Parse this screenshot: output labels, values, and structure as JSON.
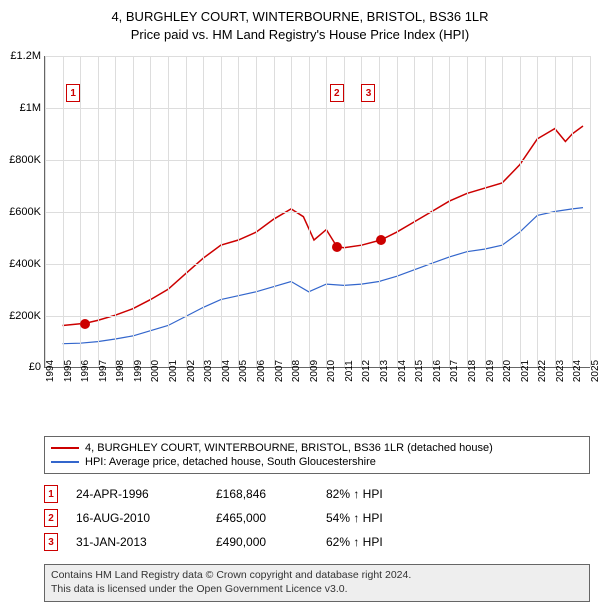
{
  "title": {
    "line1": "4, BURGHLEY COURT, WINTERBOURNE, BRISTOL, BS36 1LR",
    "line2": "Price paid vs. HM Land Registry's House Price Index (HPI)"
  },
  "chart": {
    "type": "line",
    "ylim": [
      0,
      1200000
    ],
    "ytick_step": 200000,
    "ytick_labels": [
      "£0",
      "£200K",
      "£400K",
      "£600K",
      "£800K",
      "£1M",
      "£1.2M"
    ],
    "xlim": [
      1994,
      2025
    ],
    "xticks": [
      1994,
      1995,
      1996,
      1997,
      1998,
      1999,
      2000,
      2001,
      2002,
      2003,
      2004,
      2005,
      2006,
      2007,
      2008,
      2009,
      2010,
      2011,
      2012,
      2013,
      2014,
      2015,
      2016,
      2017,
      2018,
      2019,
      2020,
      2021,
      2022,
      2023,
      2024,
      2025
    ],
    "background_color": "#ffffff",
    "grid_color": "#dddddd",
    "series": [
      {
        "name": "property",
        "label": "4, BURGHLEY COURT, WINTERBOURNE, BRISTOL, BS36 1LR (detached house)",
        "color": "#cc0000",
        "line_width": 1.5,
        "points": [
          [
            1995.0,
            160000
          ],
          [
            1996.3,
            168846
          ],
          [
            1997.0,
            180000
          ],
          [
            1998.0,
            200000
          ],
          [
            1999.0,
            225000
          ],
          [
            2000.0,
            260000
          ],
          [
            2001.0,
            300000
          ],
          [
            2002.0,
            360000
          ],
          [
            2003.0,
            420000
          ],
          [
            2004.0,
            470000
          ],
          [
            2005.0,
            490000
          ],
          [
            2006.0,
            520000
          ],
          [
            2007.0,
            570000
          ],
          [
            2008.0,
            610000
          ],
          [
            2008.7,
            580000
          ],
          [
            2009.3,
            490000
          ],
          [
            2010.0,
            530000
          ],
          [
            2010.6,
            465000
          ],
          [
            2011.0,
            460000
          ],
          [
            2012.0,
            470000
          ],
          [
            2013.1,
            490000
          ],
          [
            2014.0,
            520000
          ],
          [
            2015.0,
            560000
          ],
          [
            2016.0,
            600000
          ],
          [
            2017.0,
            640000
          ],
          [
            2018.0,
            670000
          ],
          [
            2019.0,
            690000
          ],
          [
            2020.0,
            710000
          ],
          [
            2021.0,
            780000
          ],
          [
            2022.0,
            880000
          ],
          [
            2023.0,
            920000
          ],
          [
            2023.6,
            870000
          ],
          [
            2024.0,
            900000
          ],
          [
            2024.6,
            930000
          ]
        ]
      },
      {
        "name": "hpi",
        "label": "HPI: Average price, detached house, South Gloucestershire",
        "color": "#3366cc",
        "line_width": 1.2,
        "points": [
          [
            1995.0,
            90000
          ],
          [
            1996.0,
            92000
          ],
          [
            1997.0,
            98000
          ],
          [
            1998.0,
            108000
          ],
          [
            1999.0,
            120000
          ],
          [
            2000.0,
            140000
          ],
          [
            2001.0,
            160000
          ],
          [
            2002.0,
            195000
          ],
          [
            2003.0,
            230000
          ],
          [
            2004.0,
            260000
          ],
          [
            2005.0,
            275000
          ],
          [
            2006.0,
            290000
          ],
          [
            2007.0,
            310000
          ],
          [
            2008.0,
            330000
          ],
          [
            2009.0,
            290000
          ],
          [
            2010.0,
            320000
          ],
          [
            2011.0,
            315000
          ],
          [
            2012.0,
            320000
          ],
          [
            2013.0,
            330000
          ],
          [
            2014.0,
            350000
          ],
          [
            2015.0,
            375000
          ],
          [
            2016.0,
            400000
          ],
          [
            2017.0,
            425000
          ],
          [
            2018.0,
            445000
          ],
          [
            2019.0,
            455000
          ],
          [
            2020.0,
            470000
          ],
          [
            2021.0,
            520000
          ],
          [
            2022.0,
            585000
          ],
          [
            2023.0,
            600000
          ],
          [
            2024.0,
            610000
          ],
          [
            2024.6,
            615000
          ]
        ]
      }
    ],
    "markers": [
      {
        "x": 1996.3,
        "y": 168846,
        "color": "#cc0000"
      },
      {
        "x": 2010.6,
        "y": 465000,
        "color": "#cc0000"
      },
      {
        "x": 2013.1,
        "y": 490000,
        "color": "#cc0000"
      }
    ],
    "callouts": [
      {
        "n": "1",
        "x": 1995.6,
        "y_offset": 28,
        "color": "#cc0000"
      },
      {
        "n": "2",
        "x": 2010.6,
        "y_offset": 28,
        "color": "#cc0000"
      },
      {
        "n": "3",
        "x": 2012.4,
        "y_offset": 28,
        "color": "#cc0000"
      }
    ]
  },
  "legend": [
    {
      "color": "#cc0000",
      "label": "4, BURGHLEY COURT, WINTERBOURNE, BRISTOL, BS36 1LR (detached house)"
    },
    {
      "color": "#3366cc",
      "label": "HPI: Average price, detached house, South Gloucestershire"
    }
  ],
  "transactions": [
    {
      "n": "1",
      "color": "#cc0000",
      "date": "24-APR-1996",
      "price": "£168,846",
      "pct": "82% ↑ HPI"
    },
    {
      "n": "2",
      "color": "#cc0000",
      "date": "16-AUG-2010",
      "price": "£465,000",
      "pct": "54% ↑ HPI"
    },
    {
      "n": "3",
      "color": "#cc0000",
      "date": "31-JAN-2013",
      "price": "£490,000",
      "pct": "62% ↑ HPI"
    }
  ],
  "footer": {
    "line1": "Contains HM Land Registry data © Crown copyright and database right 2024.",
    "line2": "This data is licensed under the Open Government Licence v3.0."
  }
}
